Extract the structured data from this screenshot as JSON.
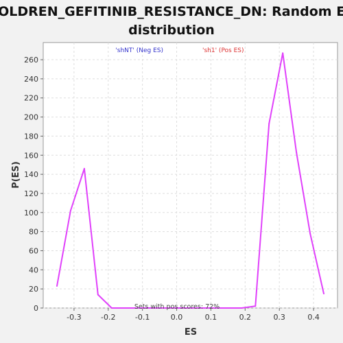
{
  "chart_data": {
    "type": "line",
    "title_line1": "COLDREN_GEFITINIB_RESISTANCE_DN: Random ES",
    "title_line2": "distribution",
    "xlabel": "ES",
    "ylabel": "P(ES)",
    "xlim": [
      -0.39,
      0.47
    ],
    "ylim": [
      0,
      278
    ],
    "x_ticks": [
      -0.3,
      -0.2,
      -0.1,
      0.0,
      0.1,
      0.2,
      0.3,
      0.4
    ],
    "x_tick_labels": [
      "-0.3",
      "-0.2",
      "-0.1",
      "0.0",
      "0.1",
      "0.2",
      "0.3",
      "0.4"
    ],
    "y_ticks": [
      0,
      20,
      40,
      60,
      80,
      100,
      120,
      140,
      160,
      180,
      200,
      220,
      240,
      260
    ],
    "y_tick_labels": [
      "0",
      "20",
      "40",
      "60",
      "80",
      "100",
      "120",
      "140",
      "160",
      "180",
      "200",
      "220",
      "240",
      "260"
    ],
    "grid": true,
    "legend": [
      {
        "label": "'shNT' (Neg ES)",
        "color": "#3333cc"
      },
      {
        "label": "'sh1' (Pos ES)",
        "color": "#dd3333"
      }
    ],
    "annotation": "Sets with pos scores: 72%",
    "series": [
      {
        "color": "#e040fb",
        "points": [
          [
            -0.35,
            23
          ],
          [
            -0.31,
            102
          ],
          [
            -0.27,
            146
          ],
          [
            -0.23,
            14
          ],
          [
            -0.19,
            0
          ],
          [
            -0.15,
            0
          ],
          [
            -0.11,
            0
          ],
          [
            -0.07,
            0
          ],
          [
            -0.03,
            0
          ],
          [
            0.01,
            0
          ],
          [
            0.05,
            0
          ],
          [
            0.09,
            0
          ],
          [
            0.13,
            0
          ],
          [
            0.17,
            0
          ],
          [
            0.19,
            0
          ],
          [
            0.23,
            2
          ],
          [
            0.27,
            193
          ],
          [
            0.31,
            267
          ],
          [
            0.35,
            163
          ],
          [
            0.39,
            78
          ],
          [
            0.43,
            15
          ]
        ]
      }
    ]
  }
}
